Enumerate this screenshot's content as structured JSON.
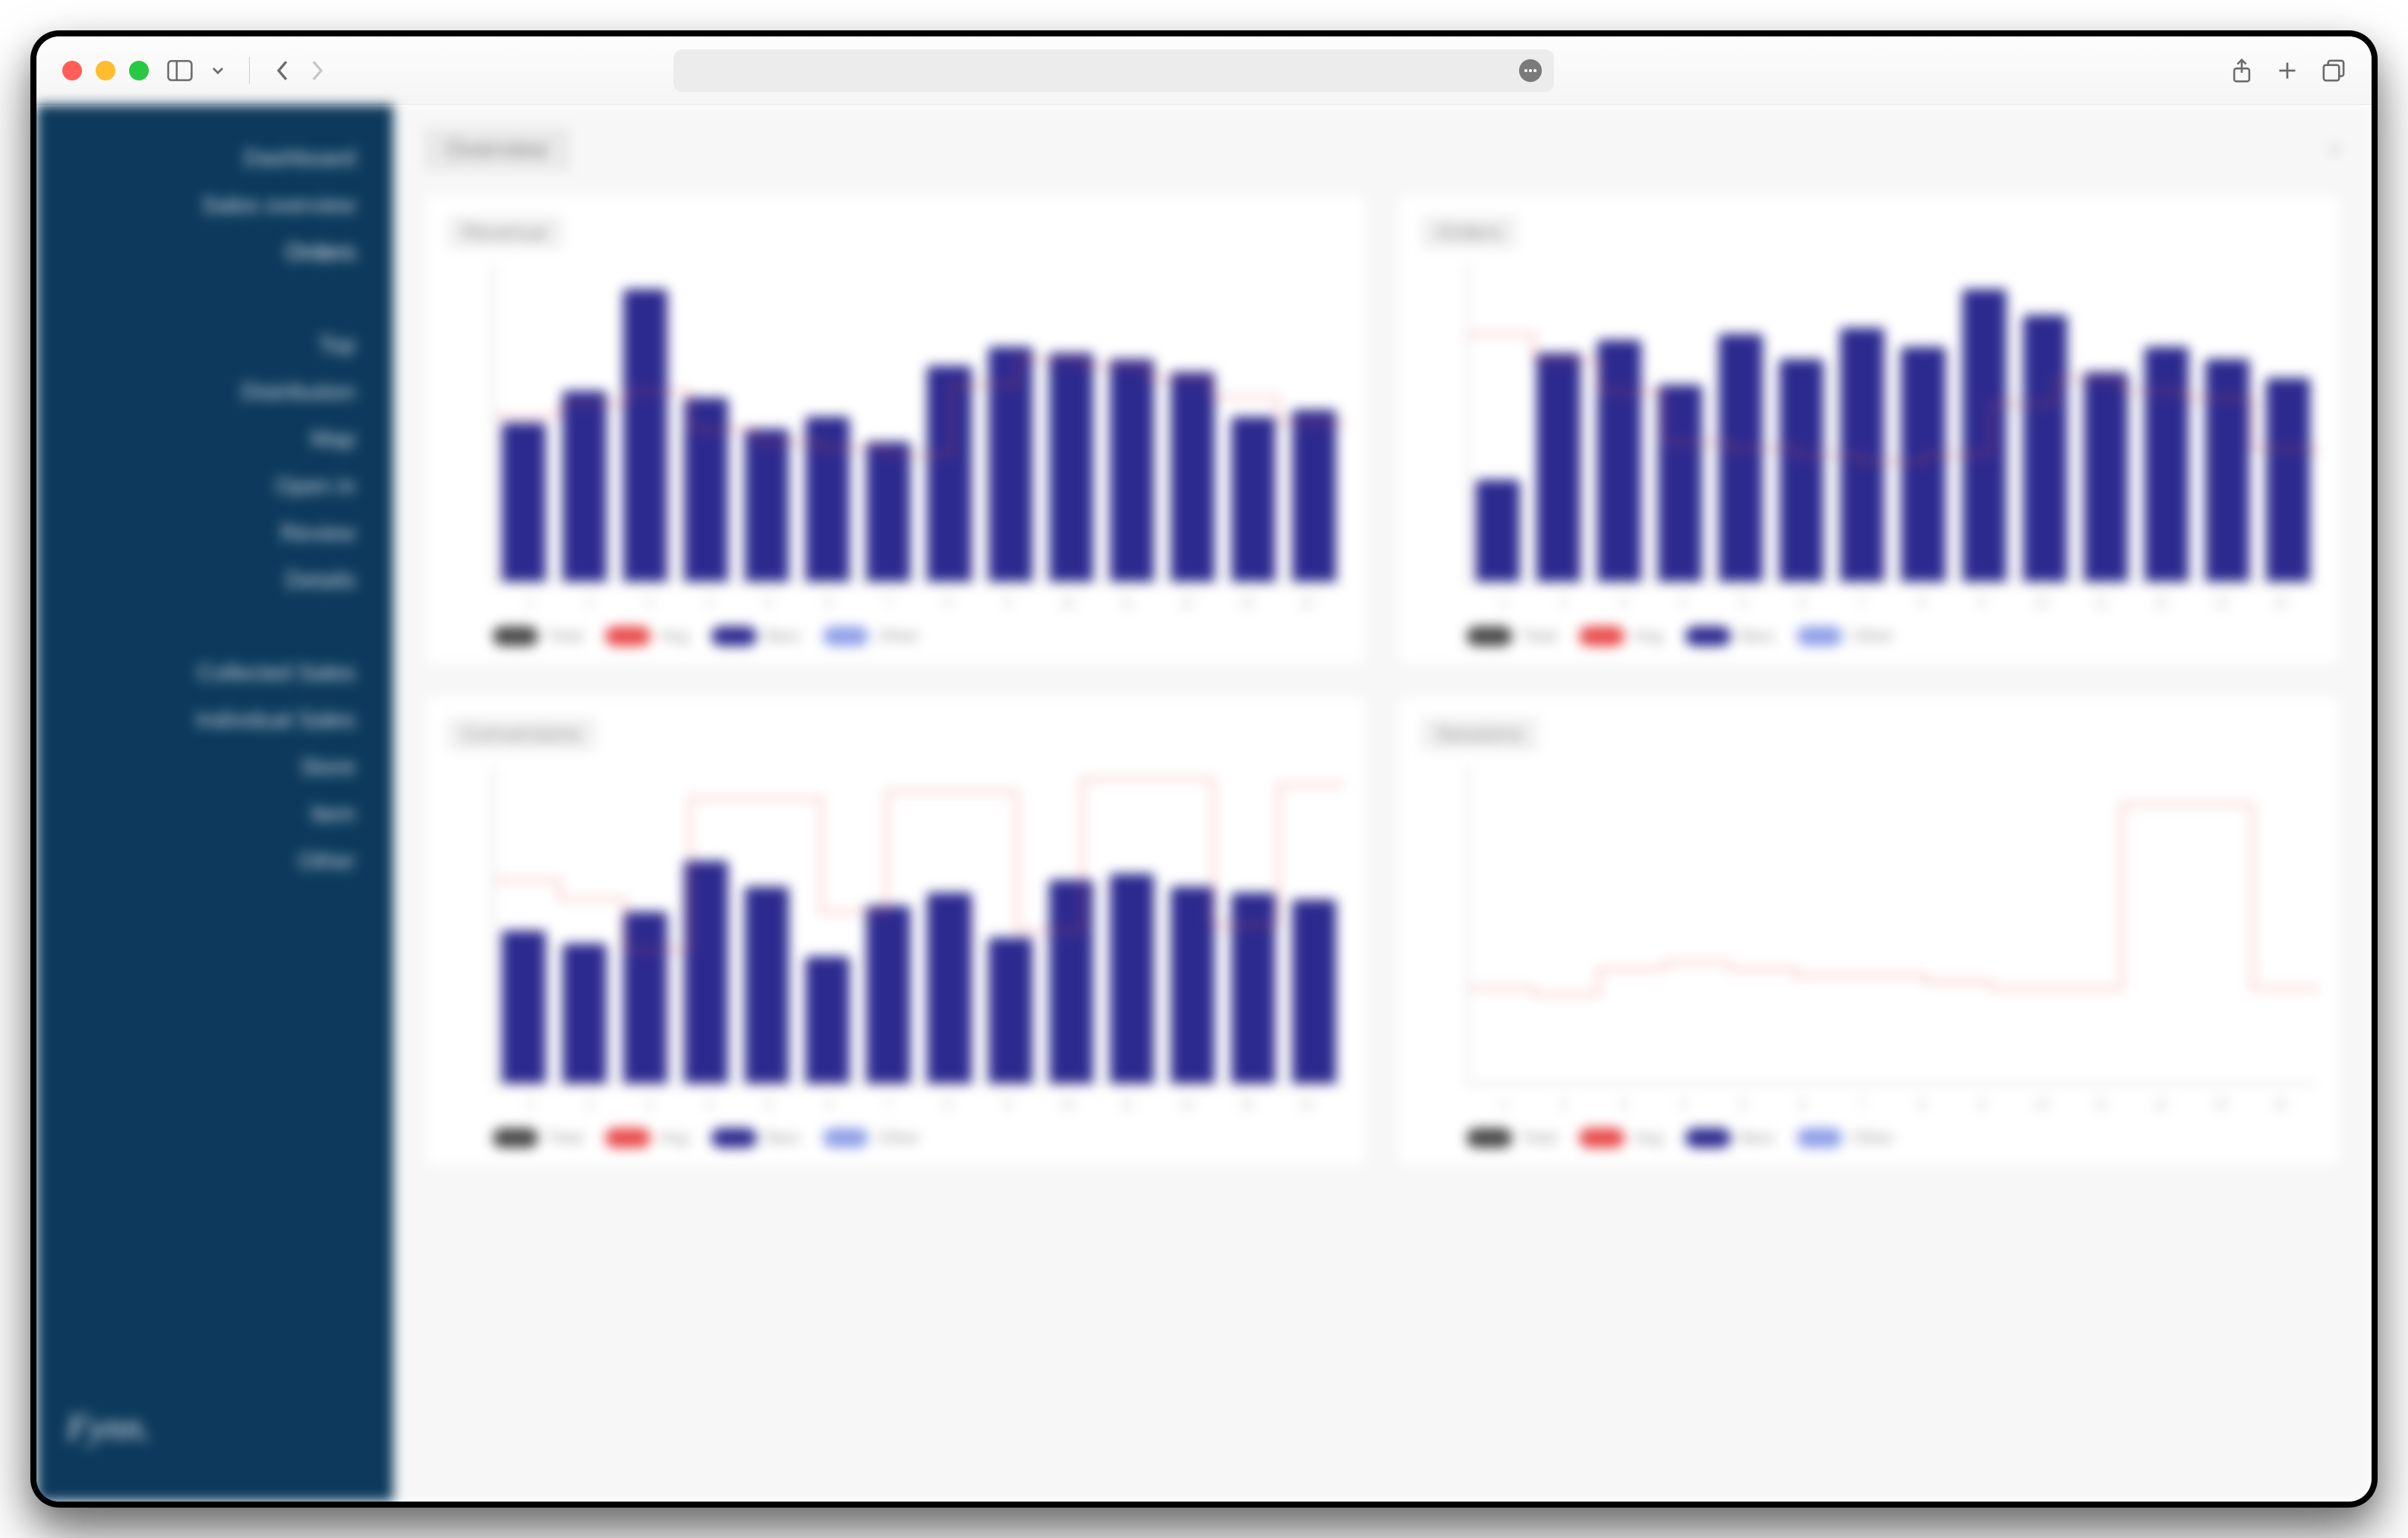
{
  "browser": {
    "address_placeholder": ""
  },
  "sidebar": {
    "group1": [
      {
        "label": "Dashboard",
        "active": false
      },
      {
        "label": "Sales overview",
        "active": false
      },
      {
        "label": "Orders",
        "active": true
      }
    ],
    "group2": [
      {
        "label": "Top",
        "active": false
      },
      {
        "label": "Distribution",
        "active": false
      },
      {
        "label": "Map",
        "active": false
      },
      {
        "label": "Open in",
        "active": false
      },
      {
        "label": "Review",
        "active": false
      },
      {
        "label": "Details",
        "active": false
      }
    ],
    "group3": [
      {
        "label": "Collected Sales",
        "active": false
      },
      {
        "label": "Individual Sales",
        "active": false
      },
      {
        "label": "Store",
        "active": false
      },
      {
        "label": "Item",
        "active": false
      },
      {
        "label": "Other",
        "active": false
      }
    ],
    "logo": "Fynn."
  },
  "page": {
    "title": "Overview",
    "right": ">"
  },
  "chart_style": {
    "bar_color": "#2d2a8f",
    "line_color": "#e94b4b",
    "axis_color": "#d0d0d0",
    "bg": "#ffffff",
    "y_max": 100
  },
  "legend_items": [
    {
      "swatch": "#4a4a4a",
      "label": "Total"
    },
    {
      "swatch": "#e94b4b",
      "label": "Avg"
    },
    {
      "swatch": "#2d2a8f",
      "label": "Bars"
    },
    {
      "swatch": "#8fa0e8",
      "label": "Other"
    }
  ],
  "charts": [
    {
      "title": "Revenue",
      "bars": [
        50,
        60,
        92,
        58,
        48,
        52,
        44,
        68,
        74,
        72,
        70,
        66,
        52,
        54
      ],
      "line": [
        52,
        56,
        60,
        48,
        44,
        42,
        40,
        62,
        70,
        68,
        64,
        58,
        50,
        48
      ],
      "x": [
        "1",
        "2",
        "3",
        "4",
        "5",
        "6",
        "7",
        "8",
        "9",
        "10",
        "11",
        "12",
        "13",
        "14"
      ]
    },
    {
      "title": "Orders",
      "bars": [
        32,
        72,
        76,
        62,
        78,
        70,
        80,
        74,
        92,
        84,
        66,
        74,
        70,
        64
      ],
      "line": [
        78,
        70,
        60,
        44,
        42,
        40,
        38,
        40,
        56,
        64,
        60,
        58,
        42,
        40
      ],
      "x": [
        "1",
        "2",
        "3",
        "4",
        "5",
        "6",
        "7",
        "8",
        "9",
        "10",
        "11",
        "12",
        "13",
        "14"
      ]
    },
    {
      "title": "Conversions",
      "bars": [
        48,
        44,
        54,
        70,
        62,
        40,
        56,
        60,
        46,
        64,
        66,
        62,
        60,
        58
      ],
      "line": [
        64,
        58,
        42,
        90,
        90,
        54,
        92,
        92,
        48,
        96,
        96,
        50,
        94,
        94
      ],
      "x": [
        "1",
        "2",
        "3",
        "4",
        "5",
        "6",
        "7",
        "8",
        "9",
        "10",
        "11",
        "12",
        "13",
        "14"
      ]
    },
    {
      "title": "Sessions",
      "bars": [
        0,
        0,
        0,
        0,
        0,
        0,
        0,
        0,
        0,
        0,
        0,
        0,
        0,
        0
      ],
      "line": [
        30,
        28,
        36,
        38,
        36,
        34,
        34,
        32,
        30,
        30,
        88,
        88,
        30,
        28
      ],
      "x": [
        "1",
        "2",
        "3",
        "4",
        "5",
        "6",
        "7",
        "8",
        "9",
        "10",
        "11",
        "12",
        "13",
        "14"
      ],
      "hide_bars": true
    }
  ]
}
